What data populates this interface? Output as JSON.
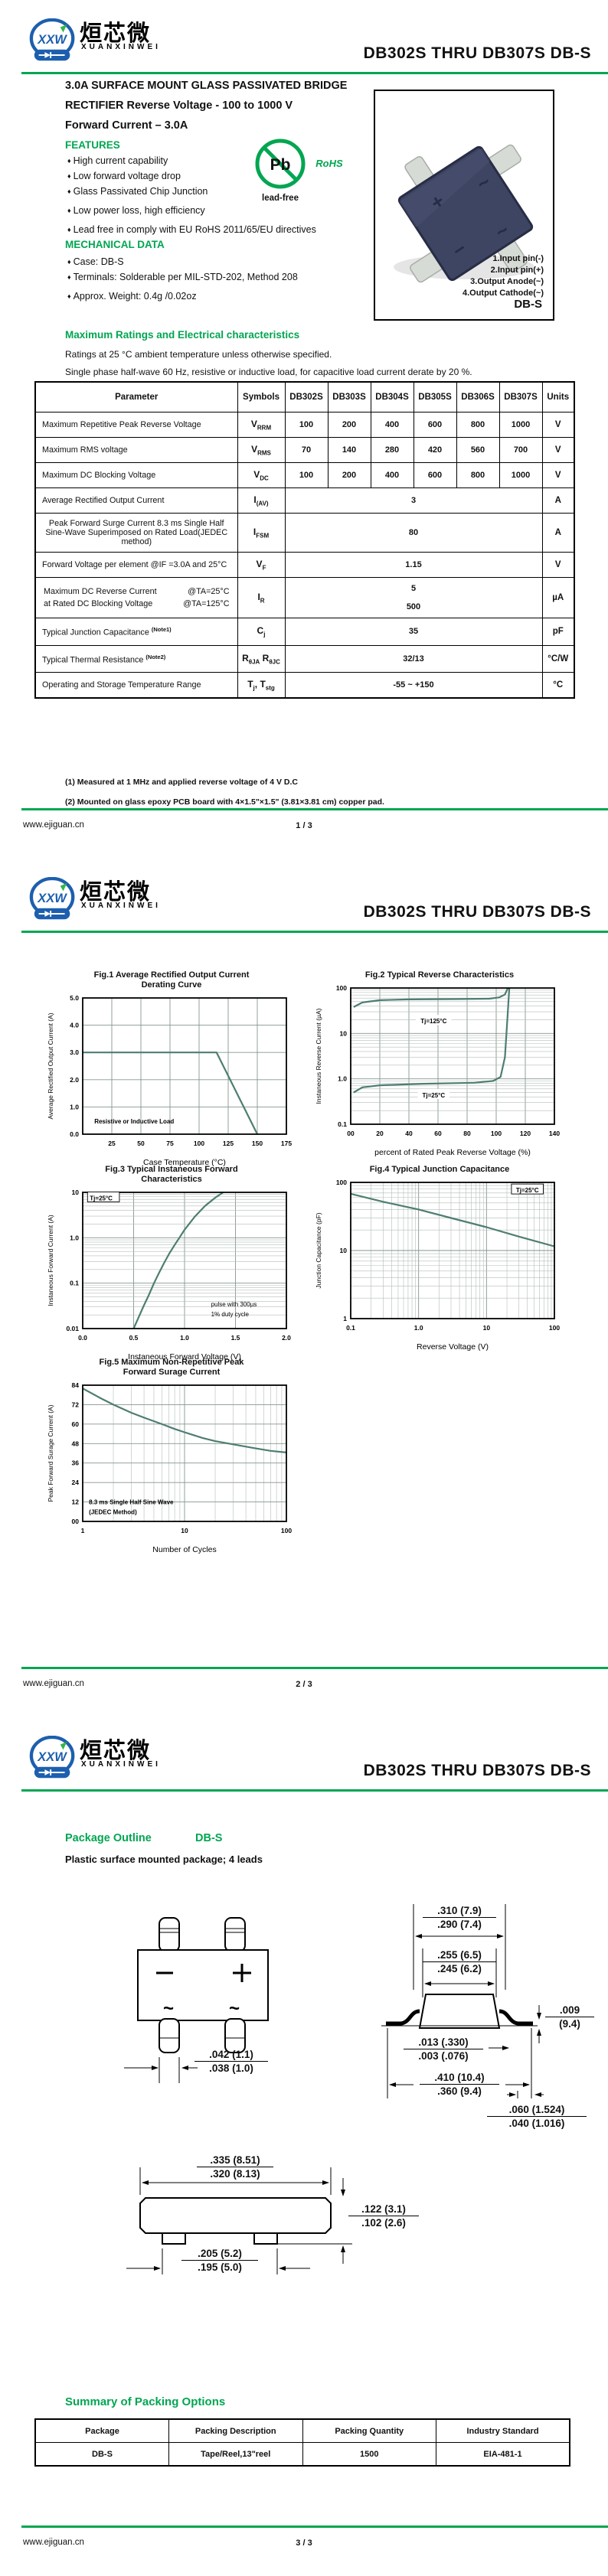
{
  "header": {
    "logo_text": "XXW",
    "brand_cn": "烜芯微",
    "brand_en": "XUANXINWEI",
    "title": "DB302S THRU DB307S  DB-S"
  },
  "footer": {
    "site": "www.ejiguan.cn",
    "pages": [
      "1 / 3",
      "2 / 3",
      "3 / 3"
    ]
  },
  "colors": {
    "accent": "#00a651",
    "logo_blue": "#1d5fae",
    "chart_line": "#4e7d72",
    "chart_grid": "#8f9f96",
    "chip_body": "#3e4562"
  },
  "package_marks": {
    "plus": "+",
    "minus": "−",
    "ac": "~"
  },
  "page1": {
    "headline1": "3.0A SURFACE MOUNT GLASS PASSIVATED BRIDGE",
    "headline2": "RECTIFIER Reverse Voltage - 100 to 1000 V",
    "headline3": "Forward Current – 3.0A",
    "features_title": "FEATURES",
    "features": [
      "High current capability",
      "Low forward voltage drop",
      "Glass Passivated Chip Junction",
      "Low power loss, high efficiency",
      "Lead free in comply with EU RoHS 2011/65/EU directives"
    ],
    "mech_title": "MECHANICAL DATA",
    "mech": [
      "Case: DB-S",
      "Terminals: Solderable per MIL-STD-202, Method 208",
      "Approx. Weight: 0.4g /0.02oz"
    ],
    "pbfree": {
      "pb": "Pb",
      "lead_free": "lead-free",
      "rohs": "RoHS"
    },
    "photo": {
      "pins": [
        "1.Input pin(-)",
        "2.Input pin(+)",
        "3.Output Anode(~)",
        "4.Output Cathode(~)"
      ],
      "package": "DB-S"
    },
    "ratings_title": "Maximum Ratings and Electrical characteristics",
    "ratings_cond1": "Ratings at 25 °C ambient temperature unless otherwise specified.",
    "ratings_cond2": "Single phase half-wave 60 Hz, resistive or inductive load, for capacitive load current derate by 20 %.",
    "ratings_table": {
      "headers": [
        "Parameter",
        "Symbols",
        "DB302S",
        "DB303S",
        "DB304S",
        "DB305S",
        "DB306S",
        "DB307S",
        "Units"
      ],
      "rows": [
        {
          "label": "Maximum Repetitive Peak Reverse Voltage",
          "symbol": [
            [
              "V",
              "RRM"
            ]
          ],
          "values": [
            "100",
            "200",
            "400",
            "600",
            "800",
            "1000"
          ],
          "unit": "V"
        },
        {
          "label": "Maximum RMS voltage",
          "symbol": [
            [
              "V",
              "RMS"
            ]
          ],
          "values": [
            "70",
            "140",
            "280",
            "420",
            "560",
            "700"
          ],
          "unit": "V"
        },
        {
          "label": "Maximum DC Blocking Voltage",
          "symbol": [
            [
              "V",
              "DC"
            ]
          ],
          "values": [
            "100",
            "200",
            "400",
            "600",
            "800",
            "1000"
          ],
          "unit": "V"
        },
        {
          "label": "Average Rectified Output Current",
          "symbol": [
            [
              "I",
              "(AV)"
            ]
          ],
          "span": "3",
          "unit": "A"
        },
        {
          "label": "Peak Forward Surge Current 8.3 ms Single Half Sine-Wave Superimposed on Rated Load(JEDEC method)",
          "symbol": [
            [
              "I",
              "FSM"
            ]
          ],
          "span": "80",
          "unit": "A",
          "center": true
        },
        {
          "label": "Forward Voltage per element  @IF =3.0A and 25°C",
          "symbol": [
            [
              "V",
              "F"
            ]
          ],
          "span": "1.15",
          "unit": "V"
        },
        {
          "lines": [
            [
              "Maximum DC Reverse Current",
              "@TA=25°C"
            ],
            [
              "at Rated DC Blocking Voltage",
              "@TA=125°C"
            ]
          ],
          "symbol": [
            [
              "I",
              "R"
            ]
          ],
          "span2": [
            "5",
            "500"
          ],
          "unit": "µA"
        },
        {
          "label": "Typical Junction Capacitance ",
          "sup": "(Note1)",
          "symbol": [
            [
              "C",
              "j"
            ]
          ],
          "span": "35",
          "unit": "pF"
        },
        {
          "label": "Typical Thermal Resistance ",
          "sup": "(Note2)",
          "symbol": [
            [
              "R",
              "θJA"
            ],
            [
              " R",
              "θJC"
            ]
          ],
          "span": "32/13",
          "unit": "°C/W"
        },
        {
          "label": "Operating and Storage Temperature Range",
          "symbol": [
            [
              "T",
              "j"
            ],
            [
              ", T",
              "stg"
            ]
          ],
          "span": "-55 ~ +150",
          "unit": "°C"
        }
      ]
    },
    "footnotes": [
      "(1) Measured at 1 MHz and applied reverse voltage of 4 V D.C",
      "(2) Mounted on glass epoxy PCB board with 4×1.5\"×1.5\"  (3.81×3.81 cm)  copper pad."
    ]
  },
  "chart_data": [
    {
      "id": "fig1",
      "type": "line",
      "title": "Fig.1  Average Rectified Output Current\nDerating Curve",
      "xlabel": "Case Temperature (°C)",
      "ylabel": "Average Rectified Output Current (A)",
      "x": {
        "type": "linear",
        "min": 0,
        "max": 175,
        "tick_vals": [
          25,
          50,
          75,
          100,
          125,
          150,
          175
        ],
        "tick_labels": [
          "25",
          "50",
          "75",
          "100",
          "125",
          "150",
          "175"
        ]
      },
      "y": {
        "type": "linear",
        "min": 0,
        "max": 5,
        "tick_vals": [
          0,
          1,
          2,
          3,
          4,
          5
        ],
        "tick_labels": [
          "0.0",
          "1.0",
          "2.0",
          "3.0",
          "4.0",
          "5.0"
        ]
      },
      "series": [
        {
          "name": "derating",
          "points": [
            [
              0,
              3
            ],
            [
              115,
              3
            ],
            [
              150,
              0
            ]
          ]
        }
      ],
      "annotations": [
        {
          "x": 10,
          "y": 0.45,
          "text": "Resistive or Inductive Load",
          "anchor": "start",
          "bold": true
        }
      ]
    },
    {
      "id": "fig2",
      "type": "line",
      "title": "Fig.2  Typical Reverse Characteristics",
      "xlabel": "percent of Rated Peak Reverse Voltage (%)",
      "ylabel": "Instaneous Reverse Current  (µA)",
      "x": {
        "type": "linear",
        "min": 0,
        "max": 140,
        "tick_vals": [
          0,
          20,
          40,
          60,
          80,
          100,
          120,
          140
        ],
        "tick_labels": [
          "00",
          "20",
          "40",
          "60",
          "80",
          "100",
          "120",
          "140"
        ]
      },
      "y": {
        "type": "log",
        "min": 0.1,
        "max": 100,
        "tick_vals": [
          0.1,
          1,
          10,
          100
        ],
        "tick_labels": [
          "0.1",
          "1.0",
          "10",
          "100"
        ]
      },
      "series": [
        {
          "name": "Tj=125°C",
          "points": [
            [
              2,
              38
            ],
            [
              8,
              48
            ],
            [
              20,
              54
            ],
            [
              40,
              56
            ],
            [
              70,
              57
            ],
            [
              95,
              58
            ],
            [
              102,
              62
            ],
            [
              106,
              72
            ],
            [
              108,
              100
            ]
          ]
        },
        {
          "name": "Tj=25°C",
          "points": [
            [
              2,
              0.5
            ],
            [
              8,
              0.65
            ],
            [
              20,
              0.72
            ],
            [
              50,
              0.78
            ],
            [
              85,
              0.82
            ],
            [
              98,
              0.9
            ],
            [
              103,
              1.1
            ],
            [
              106,
              3
            ],
            [
              108,
              30
            ],
            [
              109,
              100
            ]
          ]
        }
      ],
      "annotations": [
        {
          "x": 57,
          "y": 18,
          "text": "Tj=125°C",
          "bg": true,
          "bold": true
        },
        {
          "x": 57,
          "y": 0.42,
          "text": "Tj=25°C",
          "bg": true,
          "bold": true
        }
      ]
    },
    {
      "id": "fig3",
      "type": "line",
      "title": "Fig.3  Typical Instaneous Forward\nCharacteristics",
      "xlabel": "Instaneous Forward Voltage (V)",
      "ylabel": "Instaneous Forward Current (A)",
      "x": {
        "type": "linear",
        "min": 0,
        "max": 2,
        "tick_vals": [
          0,
          0.5,
          1,
          1.5,
          2
        ],
        "tick_labels": [
          "0.0",
          "0.5",
          "1.0",
          "1.5",
          "2.0"
        ]
      },
      "y": {
        "type": "log",
        "min": 0.01,
        "max": 10,
        "tick_vals": [
          0.01,
          0.1,
          1,
          10
        ],
        "tick_labels": [
          "0.01",
          "0.1",
          "1.0",
          "10"
        ]
      },
      "series": [
        {
          "name": "vf",
          "points": [
            [
              0.5,
              0.01
            ],
            [
              0.55,
              0.018
            ],
            [
              0.6,
              0.032
            ],
            [
              0.65,
              0.055
            ],
            [
              0.7,
              0.1
            ],
            [
              0.75,
              0.17
            ],
            [
              0.8,
              0.28
            ],
            [
              0.85,
              0.45
            ],
            [
              0.9,
              0.68
            ],
            [
              0.95,
              1.0
            ],
            [
              1.0,
              1.5
            ],
            [
              1.1,
              2.9
            ],
            [
              1.2,
              5.0
            ],
            [
              1.3,
              7.6
            ],
            [
              1.38,
              10
            ]
          ]
        }
      ],
      "annotations": [
        {
          "x": 0.07,
          "y": 7.2,
          "text": "Tj=25°C",
          "box": true,
          "anchor": "start",
          "bold": true
        },
        {
          "x": 1.26,
          "y": 0.033,
          "text": "pulse with 300µs",
          "anchor": "start"
        },
        {
          "x": 1.26,
          "y": 0.02,
          "text": "1% duty cycle",
          "anchor": "start"
        }
      ]
    },
    {
      "id": "fig4",
      "type": "line",
      "title": "Fig.4  Typical Junction Capacitance",
      "xlabel": "Reverse  Voltage (V)",
      "ylabel": "Junction Capacitance (pF)",
      "x": {
        "type": "log",
        "min": 0.1,
        "max": 100,
        "tick_vals": [
          0.1,
          1,
          10,
          100
        ],
        "tick_labels": [
          "0.1",
          "1.0",
          "10",
          "100"
        ]
      },
      "y": {
        "type": "log",
        "min": 1,
        "max": 100,
        "tick_vals": [
          1,
          10,
          100
        ],
        "tick_labels": [
          "1",
          "10",
          "100"
        ]
      },
      "series": [
        {
          "name": "cj",
          "points": [
            [
              0.1,
              68
            ],
            [
              0.3,
              52
            ],
            [
              1,
              40
            ],
            [
              3,
              30
            ],
            [
              10,
              22
            ],
            [
              30,
              16
            ],
            [
              100,
              11.5
            ]
          ]
        }
      ],
      "annotations": [
        {
          "x": 40,
          "y": 75,
          "text": "Tj=25°C",
          "box": true,
          "bold": true
        }
      ]
    },
    {
      "id": "fig5",
      "type": "line",
      "title": "Fig.5  Maximum Non-Repetitive Peak\nForward Surage Current",
      "xlabel": "Number of Cycles",
      "ylabel": "Peak Forward Surage Current (A)",
      "x": {
        "type": "log",
        "min": 1,
        "max": 100,
        "tick_vals": [
          1,
          10,
          100
        ],
        "tick_labels": [
          "1",
          "10",
          "100"
        ]
      },
      "y": {
        "type": "linear",
        "min": 0,
        "max": 84,
        "tick_vals": [
          0,
          12,
          24,
          36,
          48,
          60,
          72,
          84
        ],
        "tick_labels": [
          "00",
          "12",
          "24",
          "36",
          "48",
          "60",
          "72",
          "84"
        ]
      },
      "series": [
        {
          "name": "ifsm",
          "points": [
            [
              1,
              82
            ],
            [
              1.5,
              76
            ],
            [
              2,
              72
            ],
            [
              3,
              67
            ],
            [
              4,
              64
            ],
            [
              6,
              60
            ],
            [
              8,
              57
            ],
            [
              10,
              55
            ],
            [
              15,
              51.5
            ],
            [
              20,
              49.5
            ],
            [
              30,
              47.5
            ],
            [
              50,
              45
            ],
            [
              70,
              43.5
            ],
            [
              100,
              42.5
            ]
          ]
        }
      ],
      "annotations": [
        {
          "x": 1.15,
          "y": 11.5,
          "text": "8.3 ms Single Half Sine Wave",
          "anchor": "start",
          "bold": true
        },
        {
          "x": 1.15,
          "y": 5.5,
          "text": "(JEDEC Method)",
          "anchor": "start",
          "bold": true
        }
      ]
    }
  ],
  "page3": {
    "outline_title": "Package Outline",
    "outline_pkg": "DB-S",
    "outline_sub": "Plastic surface mounted package; 4 leads",
    "dims": {
      "pin_width": {
        "top": ".042 (1.1)",
        "bottom": ".038 (1.0)"
      },
      "top_width": {
        "top": ".310 (7.9)",
        "bottom": ".290 (7.4)"
      },
      "body_width": {
        "top": ".255 (6.5)",
        "bottom": ".245 (6.2)"
      },
      "lead_thickness": {
        "top": ".009",
        "bottom": "(9.4)"
      },
      "standoff": {
        "top": ".013 (.330)",
        "bottom": ".003 (.076)"
      },
      "lead_span": {
        "top": ".410 (10.4)",
        "bottom": ".360 (9.4)"
      },
      "foot_length": {
        "top": ".060 (1.524)",
        "bottom": ".040 (1.016)"
      },
      "bottom_length": {
        "top": ".335 (8.51)",
        "bottom": ".320 (8.13)"
      },
      "body_height": {
        "top": ".122 (3.1)",
        "bottom": ".102 (2.6)"
      },
      "pad_span": {
        "top": ".205 (5.2)",
        "bottom": ".195 (5.0)"
      }
    },
    "packing_title": "Summary of Packing Options",
    "packing_table": {
      "headers": [
        "Package",
        "Packing Description",
        "Packing Quantity",
        "Industry Standard"
      ],
      "rows": [
        [
          "DB-S",
          "Tape/Reel,13\"reel",
          "1500",
          "EIA-481-1"
        ]
      ]
    }
  }
}
